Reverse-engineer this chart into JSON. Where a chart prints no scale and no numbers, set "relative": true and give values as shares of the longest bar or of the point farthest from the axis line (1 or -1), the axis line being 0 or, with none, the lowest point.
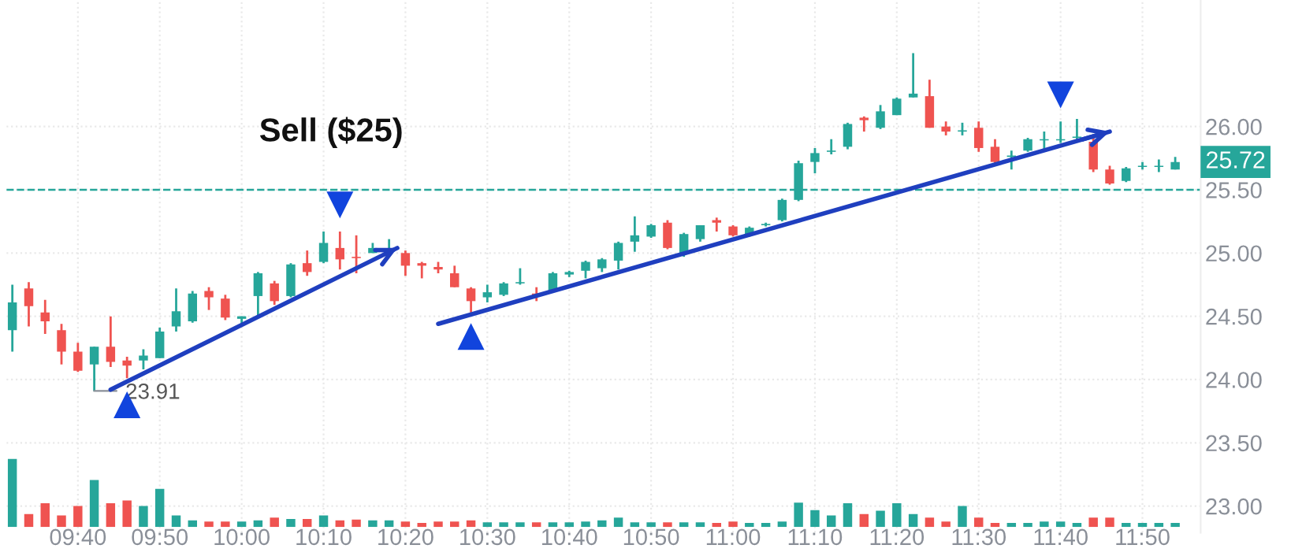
{
  "chart_data": [
    {
      "type": "candlestick",
      "x": [
        9.5333,
        9.5667,
        9.6,
        9.6333,
        9.6667,
        9.7,
        9.7333,
        9.7667,
        9.8,
        9.8333,
        9.8667,
        9.9,
        9.9333,
        9.9667,
        10.0,
        10.0333,
        10.0667,
        10.1,
        10.1333,
        10.1667,
        10.2,
        10.2333,
        10.2667,
        10.3,
        10.3333,
        10.3667,
        10.4,
        10.4333,
        10.4667,
        10.5,
        10.5333,
        10.5667,
        10.6,
        10.6333,
        10.6667,
        10.7,
        10.7333,
        10.7667,
        10.8,
        10.8333,
        10.8667,
        10.9,
        10.9333,
        10.9667,
        11.0,
        11.0333,
        11.0667,
        11.1,
        11.1333,
        11.1667,
        11.2,
        11.2333,
        11.2667,
        11.3,
        11.3333,
        11.3667,
        11.4,
        11.4333,
        11.4667,
        11.5,
        11.5333,
        11.5667,
        11.6,
        11.6333,
        11.6667,
        11.7,
        11.7333,
        11.7667,
        11.8,
        11.8333,
        11.8667,
        11.9
      ],
      "ohlc": [
        [
          24.39,
          24.75,
          24.22,
          24.61
        ],
        [
          24.72,
          24.77,
          24.42,
          24.58
        ],
        [
          24.53,
          24.63,
          24.36,
          24.46
        ],
        [
          24.39,
          24.44,
          24.12,
          24.22
        ],
        [
          24.22,
          24.29,
          24.06,
          24.07
        ],
        [
          24.12,
          24.26,
          23.91,
          24.26
        ],
        [
          24.26,
          24.5,
          24.1,
          24.14
        ],
        [
          24.15,
          24.18,
          24.01,
          24.11
        ],
        [
          24.15,
          24.24,
          24.08,
          24.19
        ],
        [
          24.17,
          24.41,
          24.17,
          24.38
        ],
        [
          24.42,
          24.72,
          24.38,
          24.54
        ],
        [
          24.46,
          24.7,
          24.45,
          24.68
        ],
        [
          24.7,
          24.73,
          24.55,
          24.65
        ],
        [
          24.64,
          24.67,
          24.47,
          24.49
        ],
        [
          24.48,
          24.5,
          24.44,
          24.5
        ],
        [
          24.66,
          24.85,
          24.5,
          24.84
        ],
        [
          24.76,
          24.78,
          24.59,
          24.62
        ],
        [
          24.66,
          24.92,
          24.65,
          24.91
        ],
        [
          24.92,
          25.02,
          24.82,
          24.85
        ],
        [
          24.93,
          25.17,
          24.92,
          25.08
        ],
        [
          25.04,
          25.17,
          24.87,
          24.95
        ],
        [
          24.97,
          25.14,
          24.84,
          24.96
        ],
        [
          25.0,
          25.08,
          25.0,
          25.04
        ],
        [
          25.02,
          25.11,
          25.0,
          25.03
        ],
        [
          25.0,
          25.02,
          24.82,
          24.9
        ],
        [
          24.92,
          24.93,
          24.8,
          24.9
        ],
        [
          24.89,
          24.93,
          24.84,
          24.87
        ],
        [
          24.84,
          24.9,
          24.73,
          24.73
        ],
        [
          24.72,
          24.73,
          24.53,
          24.62
        ],
        [
          24.65,
          24.75,
          24.61,
          24.69
        ],
        [
          24.67,
          24.77,
          24.66,
          24.76
        ],
        [
          24.76,
          24.88,
          24.75,
          24.77
        ],
        [
          24.68,
          24.73,
          24.62,
          24.66
        ],
        [
          24.7,
          24.85,
          24.69,
          24.84
        ],
        [
          24.83,
          24.86,
          24.81,
          24.85
        ],
        [
          24.86,
          24.94,
          24.8,
          24.93
        ],
        [
          24.88,
          24.96,
          24.85,
          24.95
        ],
        [
          24.94,
          25.09,
          24.87,
          25.08
        ],
        [
          25.09,
          25.29,
          25.01,
          25.14
        ],
        [
          25.13,
          25.23,
          25.12,
          25.22
        ],
        [
          25.24,
          25.26,
          25.03,
          25.04
        ],
        [
          25.0,
          25.16,
          24.97,
          25.15
        ],
        [
          25.11,
          25.22,
          25.09,
          25.22
        ],
        [
          25.26,
          25.28,
          25.17,
          25.24
        ],
        [
          25.21,
          25.22,
          25.13,
          25.14
        ],
        [
          25.14,
          25.21,
          25.13,
          25.2
        ],
        [
          25.22,
          25.24,
          25.21,
          25.23
        ],
        [
          25.26,
          25.43,
          25.25,
          25.42
        ],
        [
          25.42,
          25.73,
          25.41,
          25.71
        ],
        [
          25.72,
          25.83,
          25.63,
          25.79
        ],
        [
          25.8,
          25.9,
          25.78,
          25.81
        ],
        [
          25.84,
          26.03,
          25.82,
          26.02
        ],
        [
          26.07,
          26.08,
          25.96,
          26.05
        ],
        [
          25.99,
          26.17,
          25.98,
          26.12
        ],
        [
          26.09,
          26.23,
          26.09,
          26.22
        ],
        [
          26.23,
          26.58,
          26.23,
          26.26
        ],
        [
          26.24,
          26.37,
          25.99,
          25.99
        ],
        [
          26.0,
          26.04,
          25.93,
          25.96
        ],
        [
          25.96,
          26.03,
          25.93,
          25.97
        ],
        [
          25.99,
          26.04,
          25.8,
          25.83
        ],
        [
          25.84,
          25.9,
          25.7,
          25.72
        ],
        [
          25.76,
          25.81,
          25.66,
          25.77
        ],
        [
          25.81,
          25.91,
          25.8,
          25.9
        ],
        [
          25.89,
          25.96,
          25.8,
          25.9
        ],
        [
          25.89,
          26.04,
          25.87,
          25.9
        ],
        [
          25.91,
          26.06,
          25.89,
          25.92
        ],
        [
          25.88,
          25.91,
          25.64,
          25.66
        ],
        [
          25.66,
          25.69,
          25.54,
          25.55
        ],
        [
          25.57,
          25.68,
          25.56,
          25.67
        ],
        [
          25.68,
          25.72,
          25.66,
          25.69
        ],
        [
          25.68,
          25.74,
          25.64,
          25.69
        ],
        [
          25.66,
          25.76,
          25.66,
          25.72
        ]
      ],
      "colors": [
        "#26a69a",
        "#ef5350",
        "#ef5350",
        "#ef5350",
        "#ef5350",
        "#26a69a",
        "#ef5350",
        "#ef5350",
        "#26a69a",
        "#26a69a",
        "#26a69a",
        "#26a69a",
        "#ef5350",
        "#ef5350",
        "#26a69a",
        "#26a69a",
        "#ef5350",
        "#26a69a",
        "#ef5350",
        "#26a69a",
        "#ef5350",
        "#ef5350",
        "#26a69a",
        "#26a69a",
        "#ef5350",
        "#ef5350",
        "#ef5350",
        "#ef5350",
        "#ef5350",
        "#26a69a",
        "#26a69a",
        "#26a69a",
        "#ef5350",
        "#26a69a",
        "#26a69a",
        "#26a69a",
        "#26a69a",
        "#26a69a",
        "#26a69a",
        "#26a69a",
        "#ef5350",
        "#26a69a",
        "#26a69a",
        "#ef5350",
        "#ef5350",
        "#26a69a",
        "#26a69a",
        "#26a69a",
        "#26a69a",
        "#26a69a",
        "#26a69a",
        "#26a69a",
        "#ef5350",
        "#26a69a",
        "#26a69a",
        "#26a69a",
        "#ef5350",
        "#ef5350",
        "#26a69a",
        "#ef5350",
        "#ef5350",
        "#26a69a",
        "#26a69a",
        "#26a69a",
        "#26a69a",
        "#26a69a",
        "#ef5350",
        "#ef5350",
        "#26a69a",
        "#26a69a",
        "#26a69a",
        "#26a69a"
      ],
      "series": [
        {
          "type": "line",
          "color": "#1f3fbf",
          "x": [
            9.7333,
            10.3167
          ],
          "values": [
            23.92,
            25.04
          ]
        },
        {
          "type": "line",
          "color": "#1f3fbf",
          "x": [
            10.4,
            11.7667
          ],
          "values": [
            24.44,
            25.96
          ]
        },
        {
          "type": "scatter",
          "marker": "triangle",
          "color": "#1144dd",
          "x": [
            9.7667,
            10.4667
          ],
          "values": [
            23.8,
            24.34
          ]
        },
        {
          "type": "scatter",
          "marker": "triangle_down",
          "color": "#1144dd",
          "x": [
            10.2,
            11.6667
          ],
          "values": [
            25.38,
            26.25
          ]
        }
      ],
      "ref_lines": [
        {
          "axis": "y",
          "value": 25.5,
          "color": "#26a69a",
          "line_style": "dashed"
        }
      ],
      "annotations": [
        {
          "text": "Sell ($25)",
          "x": 10.2,
          "y": 25.38
        },
        {
          "text": "23.91",
          "x": 9.7,
          "y": 23.91
        },
        {
          "text": "25.72",
          "x": 11.9,
          "y": 25.72
        }
      ],
      "xlim": [
        9.5213,
        11.9517
      ],
      "ylim": [
        22.79,
        27.0
      ],
      "xticks": [
        {
          "value": 9.6667,
          "label": "09:40"
        },
        {
          "value": 9.8333,
          "label": "09:50"
        },
        {
          "value": 10.0,
          "label": "10:00"
        },
        {
          "value": 10.1667,
          "label": "10:10"
        },
        {
          "value": 10.3333,
          "label": "10:20"
        },
        {
          "value": 10.5,
          "label": "10:30"
        },
        {
          "value": 10.6667,
          "label": "10:40"
        },
        {
          "value": 10.8333,
          "label": "10:50"
        },
        {
          "value": 11.0,
          "label": "11:00"
        },
        {
          "value": 11.1667,
          "label": "11:10"
        },
        {
          "value": 11.3333,
          "label": "11:20"
        },
        {
          "value": 11.5,
          "label": "11:30"
        },
        {
          "value": 11.6667,
          "label": "11:40"
        },
        {
          "value": 11.8333,
          "label": "11:50"
        }
      ],
      "yticks": [
        {
          "value": 23.0,
          "label": "23.00"
        },
        {
          "value": 23.5,
          "label": "23.50"
        },
        {
          "value": 24.0,
          "label": "24.00"
        },
        {
          "value": 24.5,
          "label": "24.50"
        },
        {
          "value": 25.0,
          "label": "25.00"
        },
        {
          "value": 25.5,
          "label": "25.50"
        },
        {
          "value": 26.0,
          "label": "26.00"
        }
      ],
      "grid": true
    },
    {
      "type": "bar",
      "relative": true,
      "x": [
        9.5333,
        9.5667,
        9.6,
        9.6333,
        9.6667,
        9.7,
        9.7333,
        9.7667,
        9.8,
        9.8333,
        9.8667,
        9.9,
        9.9333,
        9.9667,
        10.0,
        10.0333,
        10.0667,
        10.1,
        10.1333,
        10.1667,
        10.2,
        10.2333,
        10.2667,
        10.3,
        10.3333,
        10.3667,
        10.4,
        10.4333,
        10.4667,
        10.5,
        10.5333,
        10.5667,
        10.6,
        10.6333,
        10.6667,
        10.7,
        10.7333,
        10.7667,
        10.8,
        10.8333,
        10.8667,
        10.9,
        10.9333,
        10.9667,
        11.0,
        11.0333,
        11.0667,
        11.1,
        11.1333,
        11.1667,
        11.2,
        11.2333,
        11.2667,
        11.3,
        11.3333,
        11.3667,
        11.4,
        11.4333,
        11.4667,
        11.5,
        11.5333,
        11.5667,
        11.6,
        11.6333,
        11.6667,
        11.7,
        11.7333,
        11.7667,
        11.8,
        11.8333,
        11.8667,
        11.9
      ],
      "xlim": [
        9.5213,
        11.9517
      ],
      "values": [
        1.0,
        0.19,
        0.35,
        0.17,
        0.31,
        0.69,
        0.35,
        0.39,
        0.31,
        0.56,
        0.17,
        0.1,
        0.08,
        0.08,
        0.08,
        0.1,
        0.14,
        0.12,
        0.12,
        0.17,
        0.1,
        0.11,
        0.1,
        0.1,
        0.08,
        0.06,
        0.08,
        0.08,
        0.1,
        0.07,
        0.07,
        0.07,
        0.07,
        0.07,
        0.07,
        0.08,
        0.1,
        0.14,
        0.07,
        0.07,
        0.07,
        0.07,
        0.07,
        0.06,
        0.08,
        0.06,
        0.06,
        0.08,
        0.36,
        0.25,
        0.17,
        0.35,
        0.19,
        0.24,
        0.35,
        0.19,
        0.14,
        0.08,
        0.31,
        0.14,
        0.06,
        0.06,
        0.06,
        0.08,
        0.08,
        0.06,
        0.14,
        0.14,
        0.06,
        0.06,
        0.06,
        0.06
      ],
      "colors": [
        "#26a69a",
        "#ef5350",
        "#ef5350",
        "#ef5350",
        "#ef5350",
        "#26a69a",
        "#ef5350",
        "#ef5350",
        "#26a69a",
        "#26a69a",
        "#26a69a",
        "#26a69a",
        "#ef5350",
        "#ef5350",
        "#26a69a",
        "#26a69a",
        "#ef5350",
        "#26a69a",
        "#ef5350",
        "#26a69a",
        "#ef5350",
        "#ef5350",
        "#26a69a",
        "#26a69a",
        "#ef5350",
        "#ef5350",
        "#ef5350",
        "#ef5350",
        "#ef5350",
        "#26a69a",
        "#26a69a",
        "#26a69a",
        "#ef5350",
        "#26a69a",
        "#26a69a",
        "#26a69a",
        "#26a69a",
        "#26a69a",
        "#26a69a",
        "#26a69a",
        "#ef5350",
        "#26a69a",
        "#26a69a",
        "#ef5350",
        "#ef5350",
        "#26a69a",
        "#26a69a",
        "#26a69a",
        "#26a69a",
        "#26a69a",
        "#26a69a",
        "#26a69a",
        "#ef5350",
        "#26a69a",
        "#26a69a",
        "#26a69a",
        "#ef5350",
        "#ef5350",
        "#26a69a",
        "#ef5350",
        "#ef5350",
        "#26a69a",
        "#26a69a",
        "#26a69a",
        "#26a69a",
        "#26a69a",
        "#ef5350",
        "#ef5350",
        "#26a69a",
        "#26a69a",
        "#26a69a",
        "#26a69a"
      ]
    }
  ]
}
